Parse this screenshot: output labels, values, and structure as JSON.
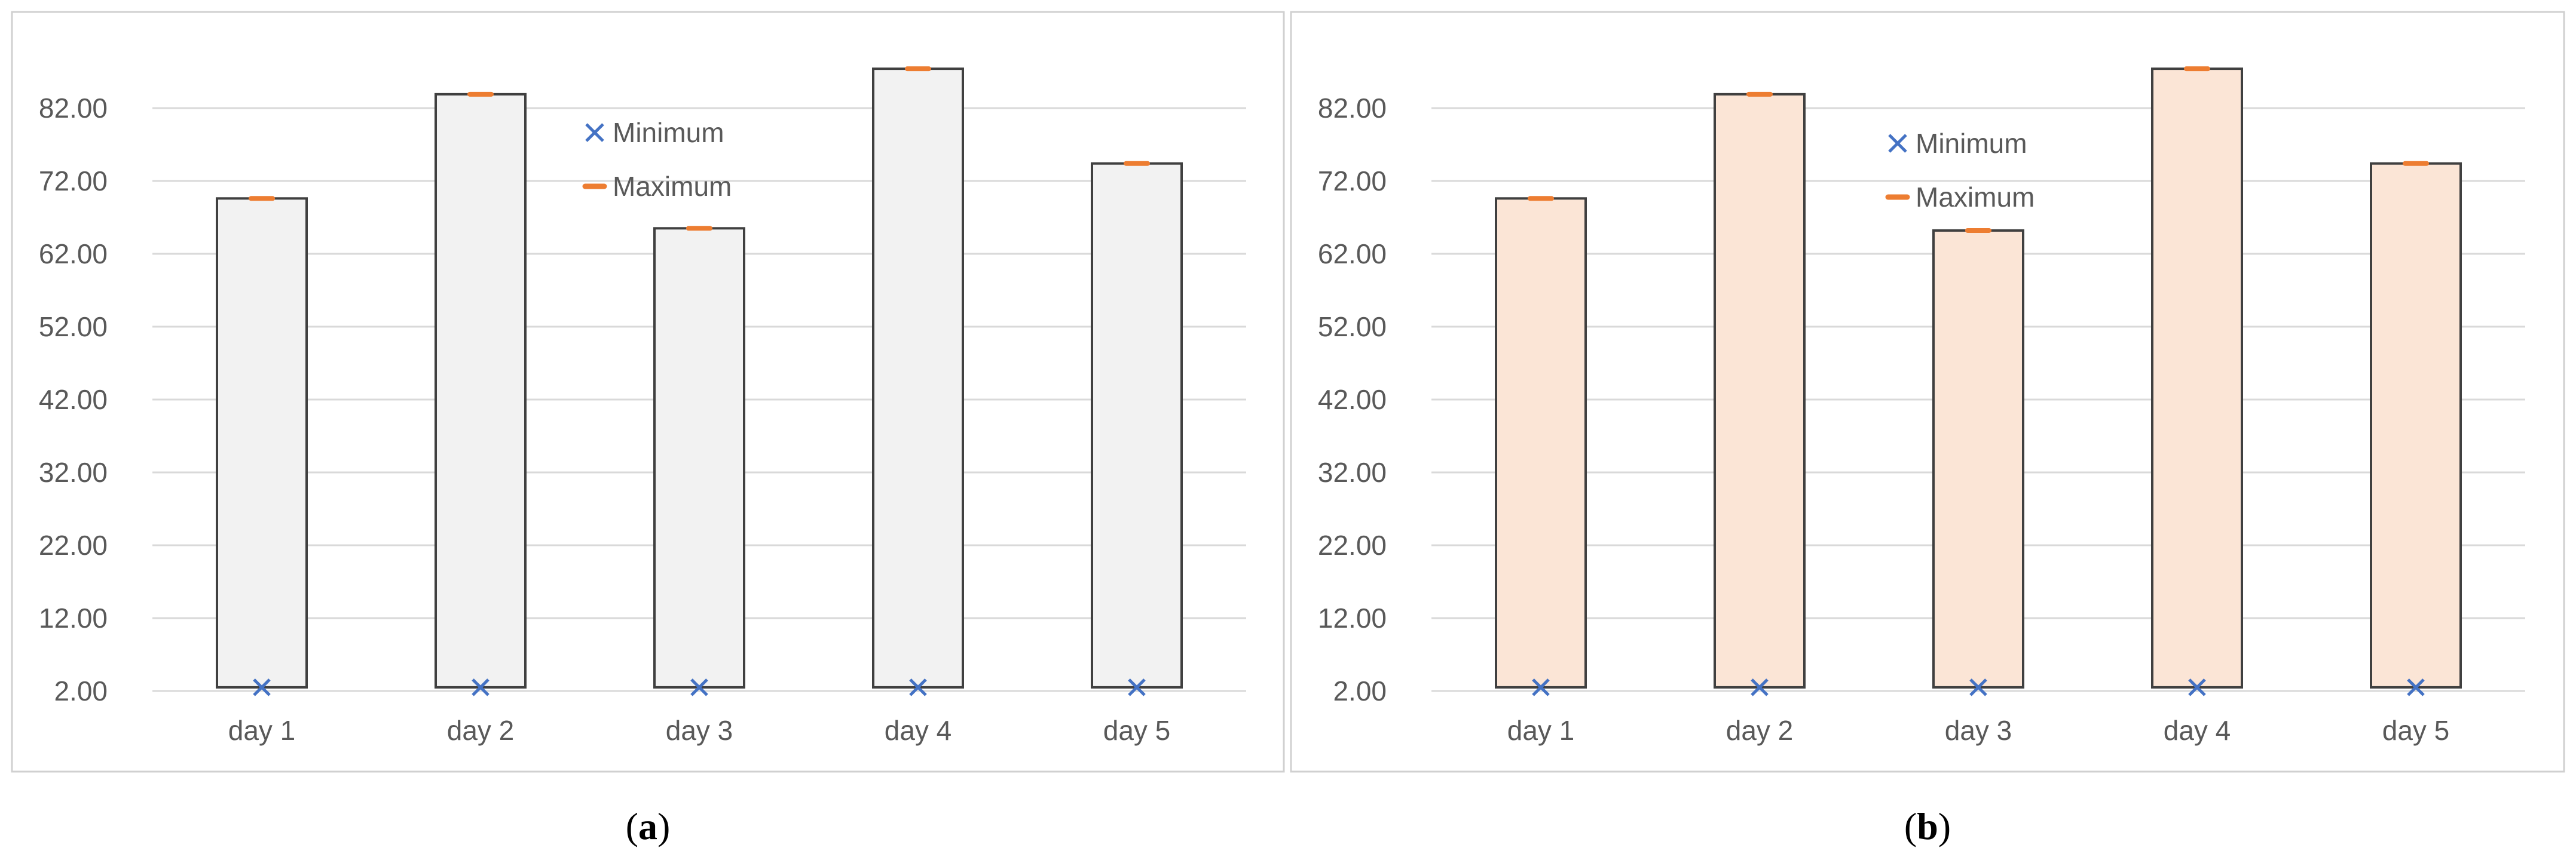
{
  "colors": {
    "grid": "#d9d9d9",
    "frame": "#d0d0d0",
    "bar_stroke": "#404040",
    "minimum_marker": "#4472c4",
    "maximum_marker": "#ed7d31"
  },
  "chart_data": [
    {
      "type": "bar",
      "panel_label": "a",
      "bar_fill": "#f2f2f2",
      "categories": [
        "day 1",
        "day 2",
        "day 3",
        "day 4",
        "day 5"
      ],
      "y_ticks": [
        "2.00",
        "12.00",
        "22.00",
        "32.00",
        "42.00",
        "52.00",
        "62.00",
        "72.00",
        "82.00"
      ],
      "ylim": [
        2,
        92
      ],
      "grid": true,
      "legend_position": "top-center",
      "series": [
        {
          "name": "Minimum",
          "marker": "x",
          "values": [
            2.5,
            2.5,
            2.5,
            2.5,
            2.5
          ]
        },
        {
          "name": "Maximum",
          "marker": "dash",
          "values": [
            69.6,
            83.9,
            65.5,
            87.4,
            74.4
          ]
        }
      ]
    },
    {
      "type": "bar",
      "panel_label": "b",
      "bar_fill": "#fbe5d6",
      "categories": [
        "day 1",
        "day 2",
        "day 3",
        "day 4",
        "day 5"
      ],
      "y_ticks": [
        "2.00",
        "12.00",
        "22.00",
        "32.00",
        "42.00",
        "52.00",
        "62.00",
        "72.00",
        "82.00"
      ],
      "ylim": [
        2,
        92
      ],
      "grid": true,
      "legend_position": "top-center",
      "series": [
        {
          "name": "Minimum",
          "marker": "x",
          "values": [
            2.5,
            2.5,
            2.5,
            2.5,
            2.5
          ]
        },
        {
          "name": "Maximum",
          "marker": "dash",
          "values": [
            69.6,
            83.9,
            65.2,
            87.4,
            74.4
          ]
        }
      ]
    }
  ]
}
